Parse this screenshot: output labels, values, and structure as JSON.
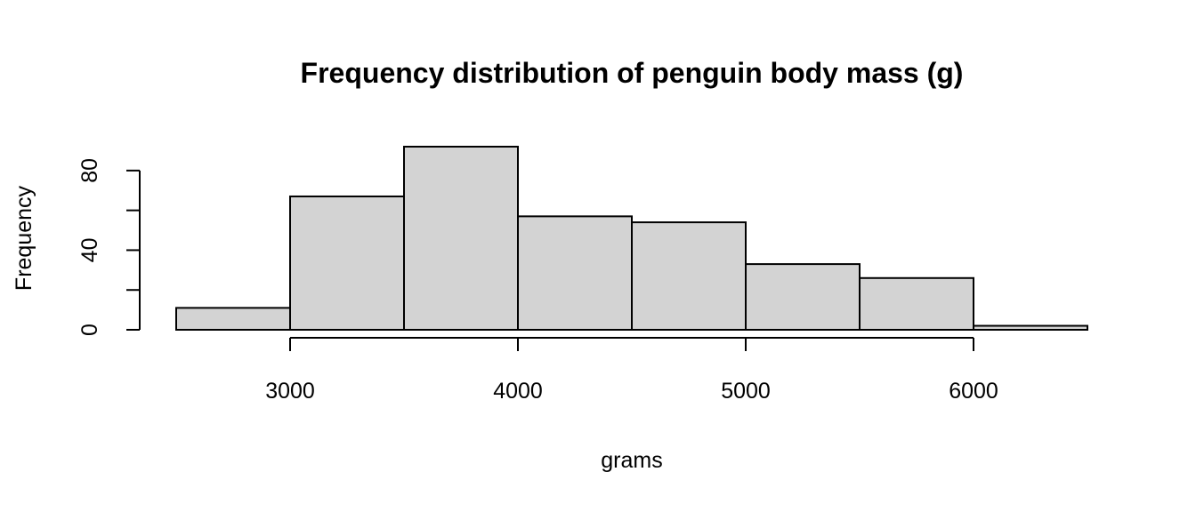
{
  "chart_data": {
    "type": "bar",
    "title": "Frequency distribution of penguin body mass (g)",
    "xlabel": "grams",
    "ylabel": "Frequency",
    "bins": [
      {
        "start": 2500,
        "end": 3000,
        "count": 11
      },
      {
        "start": 3000,
        "end": 3500,
        "count": 67
      },
      {
        "start": 3500,
        "end": 4000,
        "count": 92
      },
      {
        "start": 4000,
        "end": 4500,
        "count": 57
      },
      {
        "start": 4500,
        "end": 5000,
        "count": 54
      },
      {
        "start": 5000,
        "end": 5500,
        "count": 33
      },
      {
        "start": 5500,
        "end": 6000,
        "count": 26
      },
      {
        "start": 6000,
        "end": 6500,
        "count": 2
      }
    ],
    "xlim": [
      2500,
      6500
    ],
    "ylim": [
      0,
      92
    ],
    "x_ticks": [
      3000,
      4000,
      5000,
      6000
    ],
    "x_tick_labels": [
      "3000",
      "4000",
      "5000",
      "6000"
    ],
    "y_ticks": [
      0,
      20,
      40,
      60,
      80
    ],
    "y_tick_labels": [
      "0",
      "",
      "40",
      "",
      "80"
    ],
    "bar_color": "#d3d3d3",
    "grid": false,
    "legend": "none"
  }
}
